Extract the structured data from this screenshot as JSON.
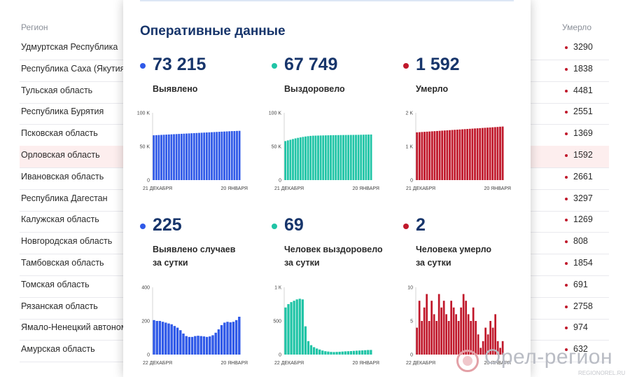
{
  "table": {
    "header_region": "Регион",
    "header_deaths": "Умерло",
    "rows": [
      {
        "name": "Удмуртская Республика",
        "deaths": "3290"
      },
      {
        "name": "Республика Саха (Якутия)",
        "deaths": "1838"
      },
      {
        "name": "Тульская область",
        "deaths": "4481"
      },
      {
        "name": "Республика Бурятия",
        "deaths": "2551"
      },
      {
        "name": "Псковская область",
        "deaths": "1369"
      },
      {
        "name": "Орловская область",
        "deaths": "1592"
      },
      {
        "name": "Ивановская область",
        "deaths": "2661"
      },
      {
        "name": "Республика Дагестан",
        "deaths": "3297"
      },
      {
        "name": "Калужская область",
        "deaths": "1269"
      },
      {
        "name": "Новгородская область",
        "deaths": "808"
      },
      {
        "name": "Тамбовская область",
        "deaths": "1854"
      },
      {
        "name": "Томская область",
        "deaths": "691"
      },
      {
        "name": "Рязанская область",
        "deaths": "2758"
      },
      {
        "name": "Ямало-Ненецкий автоном",
        "deaths": "974"
      },
      {
        "name": "Амурская область",
        "deaths": "632"
      }
    ]
  },
  "card": {
    "title": "Оперативные данные",
    "metrics": [
      {
        "value": "73 215",
        "label1": "Выявлено",
        "label2": "",
        "color": "#2f59e8"
      },
      {
        "value": "67 749",
        "label1": "Выздоровело",
        "label2": "",
        "color": "#1fc4a6"
      },
      {
        "value": "1 592",
        "label1": "Умерло",
        "label2": "",
        "color": "#c0182b"
      },
      {
        "value": "225",
        "label1": "Выявлено случаев",
        "label2": "за сутки",
        "color": "#2f59e8"
      },
      {
        "value": "69",
        "label1": "Человек выздоровело",
        "label2": "за сутки",
        "color": "#1fc4a6"
      },
      {
        "value": "2",
        "label1": "Человека умерло",
        "label2": "за сутки",
        "color": "#c0182b"
      }
    ]
  },
  "chart_data": [
    {
      "type": "bar",
      "color": "#2f59e8",
      "ylim": [
        0,
        100000
      ],
      "yticks": [
        "0",
        "50 K",
        "100 K"
      ],
      "xlabels": [
        "21 ДЕКАБРЯ",
        "20 ЯНВАРЯ"
      ],
      "values": [
        66600,
        66800,
        67000,
        67200,
        67400,
        67600,
        67800,
        68000,
        68200,
        68400,
        68600,
        68800,
        69000,
        69200,
        69400,
        69600,
        69800,
        70000,
        70200,
        70400,
        70600,
        70800,
        71000,
        71200,
        71400,
        71600,
        71800,
        72000,
        72200,
        72400,
        72600,
        72800,
        72900,
        73100,
        73215
      ]
    },
    {
      "type": "bar",
      "color": "#1fc4a6",
      "ylim": [
        0,
        100000
      ],
      "yticks": [
        "0",
        "50 K",
        "100 K"
      ],
      "xlabels": [
        "21 ДЕКАБРЯ",
        "20 ЯНВАРЯ"
      ],
      "values": [
        58000,
        59000,
        60000,
        61000,
        62000,
        62800,
        63500,
        64200,
        64800,
        65300,
        65700,
        66000,
        66100,
        66200,
        66300,
        66400,
        66500,
        66600,
        66700,
        66800,
        66850,
        66900,
        66950,
        67000,
        67050,
        67100,
        67150,
        67200,
        67250,
        67300,
        67400,
        67500,
        67600,
        67700,
        67749
      ]
    },
    {
      "type": "bar",
      "color": "#c0182b",
      "ylim": [
        0,
        2000
      ],
      "yticks": [
        "0",
        "1 K",
        "2 K"
      ],
      "xlabels": [
        "21 ДЕКАБРЯ",
        "20 ЯНВАРЯ"
      ],
      "values": [
        1420,
        1425,
        1430,
        1435,
        1440,
        1445,
        1450,
        1455,
        1460,
        1465,
        1470,
        1475,
        1480,
        1485,
        1490,
        1495,
        1500,
        1505,
        1510,
        1515,
        1520,
        1525,
        1530,
        1535,
        1540,
        1545,
        1550,
        1555,
        1560,
        1565,
        1570,
        1575,
        1580,
        1587,
        1592
      ]
    },
    {
      "type": "bar",
      "color": "#2f59e8",
      "ylim": [
        0,
        400
      ],
      "yticks": [
        "0",
        "200",
        "400"
      ],
      "xlabels": [
        "22 ДЕКАБРЯ",
        "20 ЯНВАРЯ"
      ],
      "values": [
        205,
        200,
        200,
        195,
        190,
        185,
        180,
        170,
        160,
        145,
        125,
        110,
        105,
        105,
        110,
        112,
        110,
        108,
        105,
        108,
        115,
        130,
        150,
        175,
        190,
        195,
        192,
        195,
        205,
        225
      ]
    },
    {
      "type": "bar",
      "color": "#1fc4a6",
      "ylim": [
        0,
        1000
      ],
      "yticks": [
        "0",
        "500",
        "1 К"
      ],
      "xlabels": [
        "22 ДЕКАБРЯ",
        "20 ЯНВАРЯ"
      ],
      "values": [
        700,
        750,
        780,
        800,
        820,
        830,
        820,
        420,
        200,
        140,
        110,
        90,
        75,
        60,
        50,
        45,
        40,
        38,
        40,
        42,
        45,
        48,
        50,
        52,
        55,
        58,
        60,
        62,
        65,
        68,
        69
      ]
    },
    {
      "type": "bar",
      "color": "#c0182b",
      "ylim": [
        0,
        10
      ],
      "yticks": [
        "0",
        "5",
        "10"
      ],
      "xlabels": [
        "22 ДЕКАБРЯ",
        "20 ЯНВАРЯ"
      ],
      "values": [
        4,
        8,
        5,
        7,
        9,
        5,
        8,
        6,
        5,
        9,
        7,
        8,
        6,
        5,
        8,
        7,
        6,
        5,
        7,
        9,
        8,
        6,
        5,
        7,
        5,
        3,
        1,
        2,
        4,
        3,
        5,
        4,
        6,
        2,
        1,
        2
      ]
    }
  ],
  "watermark": {
    "text": "Орел-регион",
    "sub": "REGIONOREL.RU"
  }
}
